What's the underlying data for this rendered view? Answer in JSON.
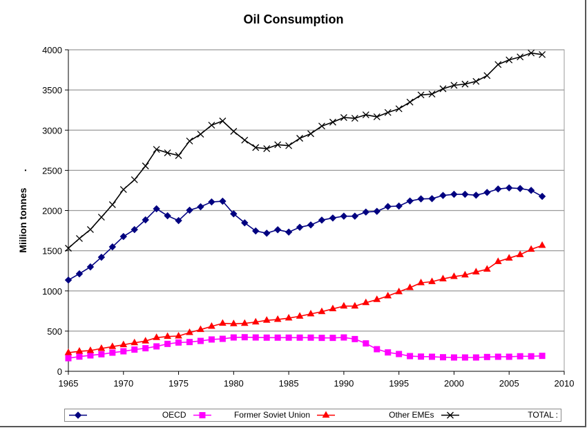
{
  "chart_data": {
    "type": "line",
    "title": "Oil Consumption",
    "xlabel": "",
    "ylabel": "Miilion tonnes      .",
    "xlim": [
      1965,
      2010
    ],
    "ylim": [
      0,
      4000
    ],
    "xticks": [
      1965,
      1970,
      1975,
      1980,
      1985,
      1990,
      1995,
      2000,
      2005,
      2010
    ],
    "yticks": [
      0,
      500,
      1000,
      1500,
      2000,
      2500,
      3000,
      3500,
      4000
    ],
    "grid": "horizontal",
    "legend_position": "bottom",
    "x": [
      1965,
      1966,
      1967,
      1968,
      1969,
      1970,
      1971,
      1972,
      1973,
      1974,
      1975,
      1976,
      1977,
      1978,
      1979,
      1980,
      1981,
      1982,
      1983,
      1984,
      1985,
      1986,
      1987,
      1988,
      1989,
      1990,
      1991,
      1992,
      1993,
      1994,
      1995,
      1996,
      1997,
      1998,
      1999,
      2000,
      2001,
      2002,
      2003,
      2004,
      2005,
      2006,
      2007,
      2008
    ],
    "series": [
      {
        "name": "OECD",
        "color": "#000080",
        "marker": "diamond",
        "values": [
          1135,
          1213,
          1299,
          1419,
          1548,
          1677,
          1763,
          1884,
          2022,
          1935,
          1875,
          2004,
          2047,
          2107,
          2116,
          1959,
          1847,
          1746,
          1718,
          1761,
          1732,
          1792,
          1821,
          1881,
          1907,
          1930,
          1930,
          1981,
          1990,
          2050,
          2056,
          2119,
          2145,
          2148,
          2188,
          2202,
          2202,
          2191,
          2225,
          2268,
          2282,
          2274,
          2251,
          2176
        ]
      },
      {
        "name": "Former Soviet Union",
        "color": "#ff00ff",
        "marker": "square",
        "values": [
          163,
          183,
          198,
          212,
          232,
          249,
          270,
          287,
          310,
          341,
          358,
          364,
          378,
          396,
          404,
          421,
          424,
          421,
          419,
          419,
          419,
          419,
          419,
          416,
          416,
          421,
          401,
          347,
          275,
          235,
          215,
          189,
          183,
          181,
          175,
          172,
          172,
          172,
          178,
          181,
          181,
          187,
          187,
          192
        ]
      },
      {
        "name": "Other EMEs",
        "color": "#ff0000",
        "marker": "triangle",
        "values": [
          232,
          249,
          258,
          284,
          307,
          330,
          355,
          376,
          419,
          433,
          439,
          482,
          519,
          559,
          597,
          591,
          596,
          613,
          634,
          645,
          662,
          685,
          714,
          742,
          777,
          811,
          811,
          854,
          892,
          938,
          989,
          1041,
          1101,
          1115,
          1150,
          1178,
          1198,
          1236,
          1270,
          1365,
          1408,
          1451,
          1517,
          1566
        ]
      },
      {
        "name": "TOTAL :",
        "color": "#000000",
        "marker": "x",
        "values": [
          1531,
          1652,
          1764,
          1918,
          2073,
          2262,
          2383,
          2555,
          2761,
          2718,
          2684,
          2865,
          2950,
          3062,
          3114,
          2985,
          2876,
          2784,
          2770,
          2819,
          2807,
          2899,
          2956,
          3051,
          3100,
          3157,
          3148,
          3191,
          3166,
          3220,
          3266,
          3349,
          3438,
          3449,
          3515,
          3558,
          3573,
          3607,
          3679,
          3817,
          3874,
          3911,
          3960,
          3940
        ]
      }
    ]
  }
}
